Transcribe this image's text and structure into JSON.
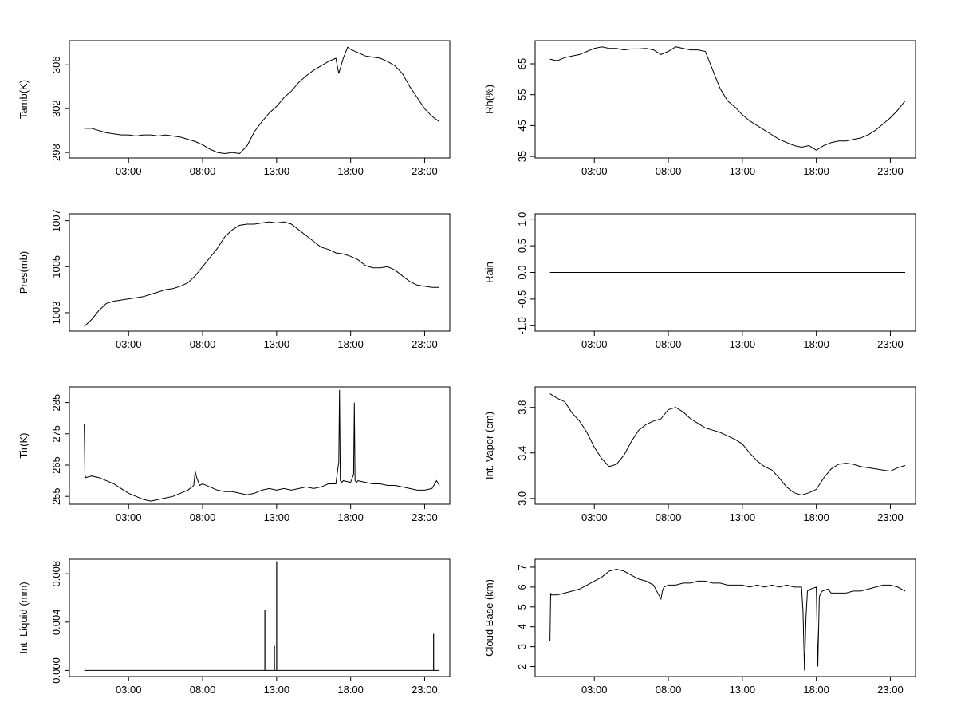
{
  "chart_data": [
    {
      "type": "line",
      "ylabel": "Tamb(K)",
      "ylim": [
        297.5,
        308.2
      ],
      "yticks": [
        298,
        302,
        306
      ],
      "xticks": [
        "03:00",
        "08:00",
        "13:00",
        "18:00",
        "23:00"
      ],
      "x_range_hours": [
        -1,
        24.7
      ],
      "series": [
        {
          "x": [
            0.0,
            0.5,
            1.0,
            1.5,
            2.0,
            2.5,
            3.0,
            3.5,
            4.0,
            4.5,
            5.0,
            5.5,
            6.0,
            6.5,
            7.0,
            7.5,
            8.0,
            8.5,
            9.0,
            9.5,
            10.0,
            10.5,
            11.0,
            11.5,
            12.0,
            12.5,
            13.0,
            13.5,
            14.0,
            14.5,
            15.0,
            15.5,
            16.0,
            16.5,
            17.0,
            17.2,
            17.5,
            17.8,
            18.0,
            18.5,
            19.0,
            19.5,
            20.0,
            20.5,
            21.0,
            21.5,
            22.0,
            22.5,
            23.0,
            23.5,
            24.0
          ],
          "values": [
            300.2,
            300.2,
            300.0,
            299.8,
            299.7,
            299.6,
            299.6,
            299.5,
            299.6,
            299.6,
            299.5,
            299.6,
            299.5,
            299.4,
            299.2,
            299.0,
            298.7,
            298.3,
            298.0,
            297.9,
            298.0,
            297.9,
            298.6,
            299.9,
            300.8,
            301.6,
            302.2,
            303.0,
            303.6,
            304.4,
            305.0,
            305.5,
            305.9,
            306.3,
            306.6,
            305.2,
            306.6,
            307.6,
            307.4,
            307.1,
            306.8,
            306.7,
            306.6,
            306.3,
            305.9,
            305.2,
            304.0,
            303.0,
            302.0,
            301.3,
            300.8
          ]
        }
      ]
    },
    {
      "type": "line",
      "ylabel": "Rh(%)",
      "ylim": [
        34.5,
        72.5
      ],
      "yticks": [
        35,
        45,
        55,
        65
      ],
      "xticks": [
        "03:00",
        "08:00",
        "13:00",
        "18:00",
        "23:00"
      ],
      "x_range_hours": [
        -1,
        24.7
      ],
      "series": [
        {
          "x": [
            0.0,
            0.5,
            1.0,
            1.5,
            2.0,
            2.5,
            3.0,
            3.5,
            4.0,
            4.5,
            5.0,
            5.5,
            6.0,
            6.5,
            7.0,
            7.5,
            8.0,
            8.5,
            9.0,
            9.5,
            10.0,
            10.5,
            11.0,
            11.5,
            12.0,
            12.5,
            13.0,
            13.5,
            14.0,
            14.5,
            15.0,
            15.5,
            16.0,
            16.5,
            17.0,
            17.5,
            18.0,
            18.5,
            19.0,
            19.5,
            20.0,
            20.5,
            21.0,
            21.5,
            22.0,
            22.5,
            23.0,
            23.5,
            24.0
          ],
          "values": [
            66.5,
            66.0,
            67.0,
            67.5,
            68.0,
            69.0,
            70.0,
            70.5,
            70.0,
            70.0,
            69.5,
            69.8,
            69.8,
            70.0,
            69.5,
            68.0,
            69.0,
            70.5,
            70.0,
            69.5,
            69.5,
            69.0,
            63.0,
            57.0,
            53.0,
            51.0,
            48.5,
            46.5,
            45.0,
            43.5,
            42.0,
            40.5,
            39.5,
            38.5,
            38.0,
            38.5,
            37.0,
            38.5,
            39.5,
            40.0,
            40.0,
            40.5,
            41.0,
            42.0,
            43.5,
            45.5,
            47.5,
            50.0,
            53.0
          ]
        }
      ]
    },
    {
      "type": "line",
      "ylabel": "Pres(mb)",
      "ylim": [
        1002.2,
        1007.3
      ],
      "yticks": [
        1003,
        1005,
        1007
      ],
      "xticks": [
        "03:00",
        "08:00",
        "13:00",
        "18:00",
        "23:00"
      ],
      "x_range_hours": [
        -1,
        24.7
      ],
      "series": [
        {
          "x": [
            0.0,
            0.5,
            1.0,
            1.5,
            2.0,
            2.5,
            3.0,
            3.5,
            4.0,
            4.5,
            5.0,
            5.5,
            6.0,
            6.5,
            7.0,
            7.5,
            8.0,
            8.5,
            9.0,
            9.5,
            10.0,
            10.5,
            11.0,
            11.5,
            12.0,
            12.5,
            13.0,
            13.5,
            14.0,
            14.5,
            15.0,
            15.5,
            16.0,
            16.5,
            17.0,
            17.5,
            18.0,
            18.5,
            19.0,
            19.5,
            20.0,
            20.5,
            21.0,
            21.5,
            22.0,
            22.5,
            23.0,
            23.5,
            24.0
          ],
          "values": [
            1002.4,
            1002.7,
            1003.1,
            1003.4,
            1003.5,
            1003.55,
            1003.6,
            1003.65,
            1003.7,
            1003.8,
            1003.9,
            1004.0,
            1004.05,
            1004.15,
            1004.3,
            1004.6,
            1005.0,
            1005.4,
            1005.8,
            1006.3,
            1006.6,
            1006.8,
            1006.85,
            1006.85,
            1006.9,
            1006.95,
            1006.9,
            1006.95,
            1006.85,
            1006.6,
            1006.35,
            1006.1,
            1005.85,
            1005.75,
            1005.6,
            1005.55,
            1005.45,
            1005.3,
            1005.05,
            1004.95,
            1004.95,
            1005.0,
            1004.85,
            1004.6,
            1004.35,
            1004.2,
            1004.15,
            1004.1,
            1004.1
          ]
        }
      ]
    },
    {
      "type": "line",
      "ylabel": "Rain",
      "ylim": [
        -1.1,
        1.1
      ],
      "yticks": [
        -1.0,
        -0.5,
        0.0,
        0.5,
        1.0
      ],
      "yticklabels": [
        "-1.0",
        "-0.5",
        "0.0",
        "0.5",
        "1.0"
      ],
      "xticks": [
        "03:00",
        "08:00",
        "13:00",
        "18:00",
        "23:00"
      ],
      "x_range_hours": [
        -1,
        24.7
      ],
      "series": [
        {
          "x": [
            0.0,
            24.0
          ],
          "values": [
            0.0,
            0.0
          ]
        }
      ]
    },
    {
      "type": "line",
      "ylabel": "Tir(K)",
      "ylim": [
        252.5,
        290
      ],
      "yticks": [
        255,
        265,
        275,
        285
      ],
      "xticks": [
        "03:00",
        "08:00",
        "13:00",
        "18:00",
        "23:00"
      ],
      "x_range_hours": [
        -1,
        24.7
      ],
      "series": [
        {
          "x": [
            0.0,
            0.05,
            0.1,
            0.5,
            1.0,
            1.5,
            2.0,
            2.5,
            3.0,
            3.5,
            4.0,
            4.5,
            5.0,
            5.5,
            6.0,
            6.5,
            7.0,
            7.4,
            7.5,
            7.6,
            7.8,
            8.0,
            8.5,
            9.0,
            9.5,
            10.0,
            10.5,
            11.0,
            11.5,
            12.0,
            12.5,
            13.0,
            13.5,
            14.0,
            14.5,
            15.0,
            15.5,
            16.0,
            16.5,
            17.0,
            17.2,
            17.25,
            17.3,
            17.4,
            17.5,
            18.0,
            18.2,
            18.25,
            18.3,
            18.4,
            18.5,
            19.0,
            19.5,
            20.0,
            20.5,
            21.0,
            21.5,
            22.0,
            22.5,
            23.0,
            23.5,
            23.8,
            24.0
          ],
          "values": [
            278.0,
            262.0,
            261.0,
            261.5,
            261.0,
            260.0,
            259.0,
            257.5,
            256.0,
            255.0,
            254.0,
            253.5,
            254.0,
            254.5,
            255.0,
            256.0,
            257.0,
            258.5,
            263.0,
            261.0,
            258.5,
            259.0,
            258.0,
            257.0,
            256.5,
            256.5,
            256.0,
            255.5,
            256.0,
            257.0,
            257.5,
            257.0,
            257.5,
            257.0,
            257.5,
            258.0,
            257.5,
            258.0,
            259.0,
            259.0,
            266.0,
            289.0,
            260.0,
            259.5,
            260.0,
            259.5,
            262.0,
            285.0,
            260.0,
            259.5,
            260.0,
            259.5,
            259.0,
            259.0,
            258.5,
            258.5,
            258.0,
            257.5,
            257.0,
            257.0,
            257.5,
            260.0,
            258.5
          ]
        }
      ]
    },
    {
      "type": "line",
      "ylabel": "Int. Vapor (cm)",
      "ylim": [
        2.95,
        3.98
      ],
      "yticks": [
        3.0,
        3.4,
        3.8
      ],
      "yticklabels": [
        "3.0",
        "3.4",
        "3.8"
      ],
      "xticks": [
        "03:00",
        "08:00",
        "13:00",
        "18:00",
        "23:00"
      ],
      "x_range_hours": [
        -1,
        24.7
      ],
      "series": [
        {
          "x": [
            0.0,
            0.5,
            1.0,
            1.5,
            2.0,
            2.5,
            3.0,
            3.5,
            4.0,
            4.5,
            5.0,
            5.5,
            6.0,
            6.5,
            7.0,
            7.5,
            8.0,
            8.5,
            9.0,
            9.5,
            10.0,
            10.5,
            11.0,
            11.5,
            12.0,
            12.5,
            13.0,
            13.5,
            14.0,
            14.5,
            15.0,
            15.5,
            16.0,
            16.5,
            17.0,
            17.5,
            18.0,
            18.5,
            19.0,
            19.5,
            20.0,
            20.5,
            21.0,
            21.5,
            22.0,
            22.5,
            23.0,
            23.5,
            24.0
          ],
          "values": [
            3.92,
            3.88,
            3.85,
            3.75,
            3.68,
            3.58,
            3.45,
            3.35,
            3.28,
            3.3,
            3.38,
            3.5,
            3.6,
            3.65,
            3.68,
            3.7,
            3.78,
            3.8,
            3.76,
            3.7,
            3.66,
            3.62,
            3.6,
            3.58,
            3.55,
            3.52,
            3.48,
            3.4,
            3.33,
            3.28,
            3.25,
            3.18,
            3.1,
            3.05,
            3.03,
            3.05,
            3.08,
            3.18,
            3.26,
            3.3,
            3.31,
            3.3,
            3.28,
            3.27,
            3.26,
            3.25,
            3.24,
            3.27,
            3.29
          ]
        }
      ]
    },
    {
      "type": "line",
      "ylabel": "Int. Liquid (mm)",
      "ylim": [
        -0.0005,
        0.0092
      ],
      "yticks": [
        0.0,
        0.004,
        0.008
      ],
      "yticklabels": [
        "0.000",
        "0.004",
        "0.008"
      ],
      "xticks": [
        "03:00",
        "08:00",
        "13:00",
        "18:00",
        "23:00"
      ],
      "x_range_hours": [
        -1,
        24.7
      ],
      "series": [
        {
          "x": [
            0.0,
            12.2,
            12.2,
            12.21,
            12.21,
            12.85,
            12.85,
            12.86,
            12.86,
            13.0,
            13.0,
            13.01,
            13.01,
            23.6,
            23.6,
            23.61,
            23.61,
            24.0
          ],
          "values": [
            0.0,
            0.0,
            0.005,
            0.005,
            0.0,
            0.0,
            0.002,
            0.002,
            0.0,
            0.0,
            0.009,
            0.009,
            0.0,
            0.0,
            0.003,
            0.003,
            0.0,
            0.0
          ]
        }
      ]
    },
    {
      "type": "line",
      "ylabel": "Cloud Base (km)",
      "ylim": [
        1.5,
        7.4
      ],
      "yticks": [
        2,
        3,
        4,
        5,
        6,
        7
      ],
      "xticks": [
        "03:00",
        "08:00",
        "13:00",
        "18:00",
        "23:00"
      ],
      "x_range_hours": [
        -1,
        24.7
      ],
      "series": [
        {
          "x": [
            0.0,
            0.05,
            0.1,
            0.5,
            1.0,
            1.5,
            2.0,
            2.5,
            3.0,
            3.5,
            4.0,
            4.5,
            5.0,
            5.5,
            6.0,
            6.5,
            7.0,
            7.5,
            7.6,
            7.7,
            8.0,
            8.5,
            9.0,
            9.5,
            10.0,
            10.5,
            11.0,
            11.5,
            12.0,
            12.5,
            13.0,
            13.5,
            14.0,
            14.5,
            15.0,
            15.5,
            16.0,
            16.5,
            17.0,
            17.1,
            17.2,
            17.3,
            17.4,
            17.6,
            18.0,
            18.1,
            18.2,
            18.3,
            18.4,
            18.8,
            19.0,
            19.5,
            20.0,
            20.5,
            21.0,
            21.5,
            22.0,
            22.5,
            23.0,
            23.5,
            24.0
          ],
          "values": [
            3.3,
            5.7,
            5.6,
            5.6,
            5.7,
            5.8,
            5.9,
            6.1,
            6.3,
            6.5,
            6.8,
            6.9,
            6.8,
            6.6,
            6.4,
            6.3,
            6.1,
            5.4,
            5.8,
            6.0,
            6.1,
            6.1,
            6.2,
            6.2,
            6.3,
            6.3,
            6.2,
            6.2,
            6.1,
            6.1,
            6.1,
            6.0,
            6.1,
            6.0,
            6.1,
            6.0,
            6.1,
            6.0,
            6.0,
            4.8,
            1.8,
            4.5,
            5.8,
            5.9,
            6.0,
            2.0,
            5.5,
            5.7,
            5.8,
            5.9,
            5.7,
            5.7,
            5.7,
            5.8,
            5.8,
            5.9,
            6.0,
            6.1,
            6.1,
            6.0,
            5.8
          ]
        }
      ]
    }
  ]
}
